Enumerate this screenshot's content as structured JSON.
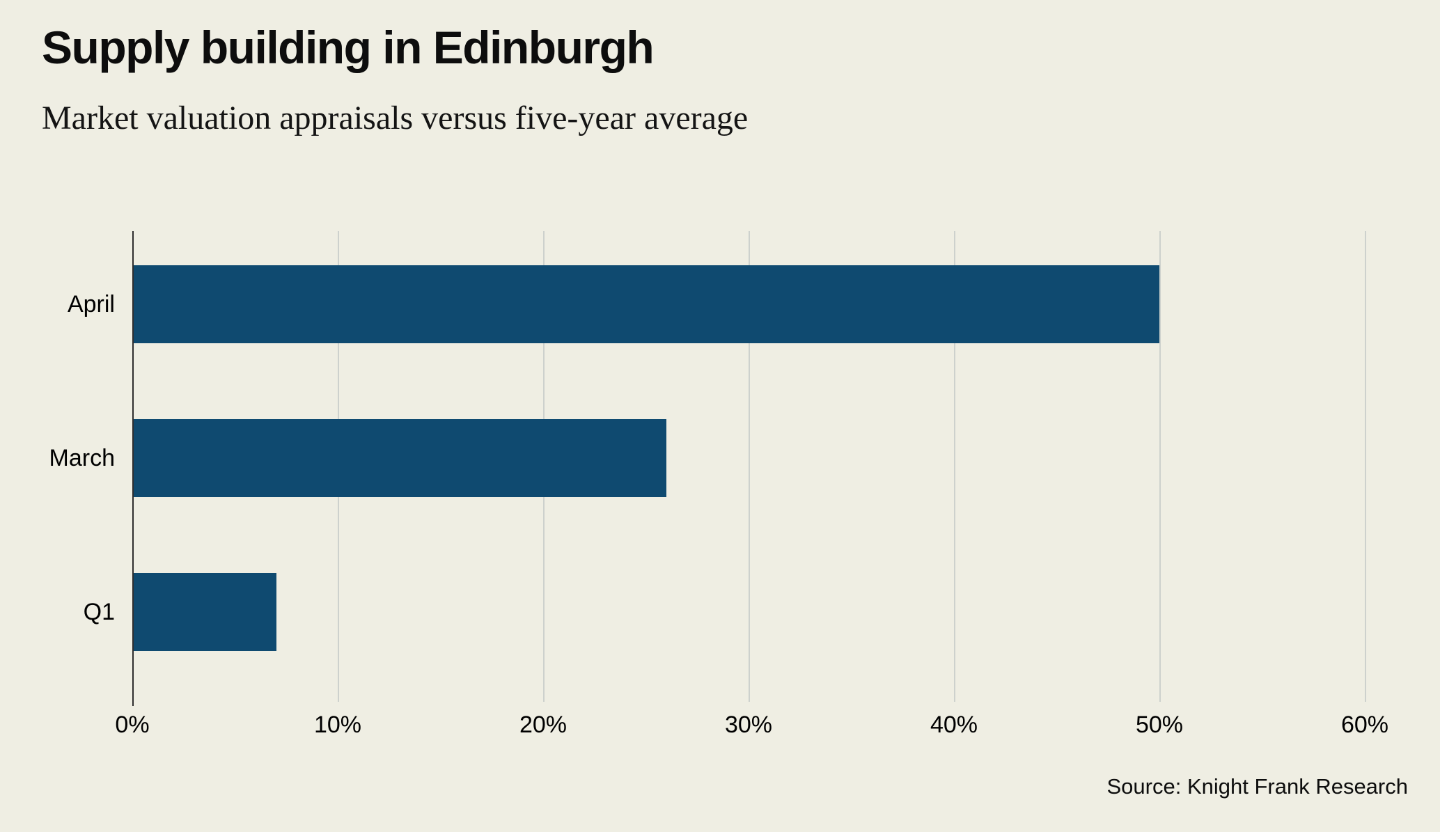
{
  "title": "Supply building in Edinburgh",
  "subtitle": "Market valuation appraisals versus five-year average",
  "source": "Source: Knight Frank Research",
  "chart_data": {
    "type": "bar",
    "orientation": "horizontal",
    "title": "Supply building in Edinburgh",
    "subtitle": "Market valuation appraisals versus five-year average",
    "categories": [
      "April",
      "March",
      "Q1"
    ],
    "values": [
      50,
      26,
      7
    ],
    "unit": "%",
    "xlabel": "",
    "ylabel": "",
    "xlim": [
      0,
      60
    ],
    "xticks": [
      0,
      10,
      20,
      30,
      40,
      50,
      60
    ],
    "xtick_labels": [
      "0%",
      "10%",
      "20%",
      "30%",
      "40%",
      "50%",
      "60%"
    ],
    "grid": true,
    "legend": false,
    "colors": {
      "bar": "#0f4a70",
      "background": "#efeee3",
      "gridline": "#cdd1cd",
      "zero_axis": "#2e2e2e",
      "text": "#0d0d0d"
    }
  }
}
